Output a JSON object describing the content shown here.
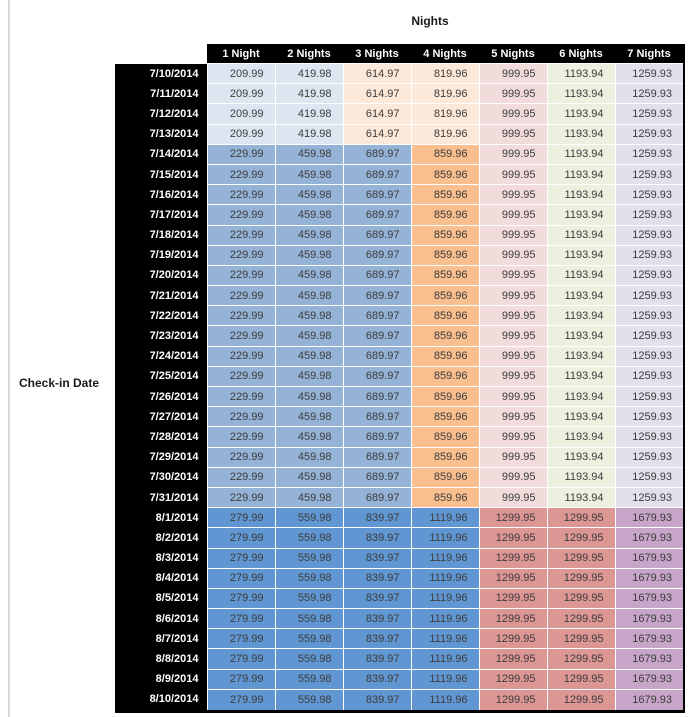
{
  "page": {
    "background_color": "#ffffff",
    "left_edge_line_color": "#d9d9d9",
    "header_bar_color": "#000000",
    "header_text_color": "#ffffff",
    "value_text_color": "#3c3c3c"
  },
  "chart_data": {
    "type": "table",
    "title": "Nights",
    "row_label": "Check-in Date",
    "columns": [
      "1 Night",
      "2 Nights",
      "3 Nights",
      "4 Nights",
      "5 Nights",
      "6 Nights",
      "7 Nights"
    ],
    "palette": {
      "blue_light": "#DCE6F1",
      "blue_mid": "#95B3D7",
      "blue_dark": "#6096D2",
      "orange_light": "#FDE9D9",
      "orange_mid": "#FABF8F",
      "red_light": "#F2DCDB",
      "red_mid": "#DC9694",
      "green_light": "#EBF1DE",
      "purple_light": "#E4DFEC",
      "purple_mid": "#C7A5C8"
    },
    "band_colors": {
      "A": [
        "blue_light",
        "blue_light",
        "orange_light",
        "orange_light",
        "red_light",
        "green_light",
        "purple_light"
      ],
      "B": [
        "blue_mid",
        "blue_mid",
        "blue_mid",
        "orange_mid",
        "red_light",
        "green_light",
        "purple_light"
      ],
      "C": [
        "blue_dark",
        "blue_dark",
        "blue_dark",
        "blue_dark",
        "red_mid",
        "red_mid",
        "purple_mid"
      ]
    },
    "rows": [
      {
        "date": "7/10/2014",
        "band": "A",
        "values": [
          209.99,
          419.98,
          614.97,
          819.96,
          999.95,
          1193.94,
          1259.93
        ]
      },
      {
        "date": "7/11/2014",
        "band": "A",
        "values": [
          209.99,
          419.98,
          614.97,
          819.96,
          999.95,
          1193.94,
          1259.93
        ]
      },
      {
        "date": "7/12/2014",
        "band": "A",
        "values": [
          209.99,
          419.98,
          614.97,
          819.96,
          999.95,
          1193.94,
          1259.93
        ]
      },
      {
        "date": "7/13/2014",
        "band": "A",
        "values": [
          209.99,
          419.98,
          614.97,
          819.96,
          999.95,
          1193.94,
          1259.93
        ]
      },
      {
        "date": "7/14/2014",
        "band": "B",
        "values": [
          229.99,
          459.98,
          689.97,
          859.96,
          999.95,
          1193.94,
          1259.93
        ]
      },
      {
        "date": "7/15/2014",
        "band": "B",
        "values": [
          229.99,
          459.98,
          689.97,
          859.96,
          999.95,
          1193.94,
          1259.93
        ]
      },
      {
        "date": "7/16/2014",
        "band": "B",
        "values": [
          229.99,
          459.98,
          689.97,
          859.96,
          999.95,
          1193.94,
          1259.93
        ]
      },
      {
        "date": "7/17/2014",
        "band": "B",
        "values": [
          229.99,
          459.98,
          689.97,
          859.96,
          999.95,
          1193.94,
          1259.93
        ]
      },
      {
        "date": "7/18/2014",
        "band": "B",
        "values": [
          229.99,
          459.98,
          689.97,
          859.96,
          999.95,
          1193.94,
          1259.93
        ]
      },
      {
        "date": "7/19/2014",
        "band": "B",
        "values": [
          229.99,
          459.98,
          689.97,
          859.96,
          999.95,
          1193.94,
          1259.93
        ]
      },
      {
        "date": "7/20/2014",
        "band": "B",
        "values": [
          229.99,
          459.98,
          689.97,
          859.96,
          999.95,
          1193.94,
          1259.93
        ]
      },
      {
        "date": "7/21/2014",
        "band": "B",
        "values": [
          229.99,
          459.98,
          689.97,
          859.96,
          999.95,
          1193.94,
          1259.93
        ]
      },
      {
        "date": "7/22/2014",
        "band": "B",
        "values": [
          229.99,
          459.98,
          689.97,
          859.96,
          999.95,
          1193.94,
          1259.93
        ]
      },
      {
        "date": "7/23/2014",
        "band": "B",
        "values": [
          229.99,
          459.98,
          689.97,
          859.96,
          999.95,
          1193.94,
          1259.93
        ]
      },
      {
        "date": "7/24/2014",
        "band": "B",
        "values": [
          229.99,
          459.98,
          689.97,
          859.96,
          999.95,
          1193.94,
          1259.93
        ]
      },
      {
        "date": "7/25/2014",
        "band": "B",
        "values": [
          229.99,
          459.98,
          689.97,
          859.96,
          999.95,
          1193.94,
          1259.93
        ]
      },
      {
        "date": "7/26/2014",
        "band": "B",
        "values": [
          229.99,
          459.98,
          689.97,
          859.96,
          999.95,
          1193.94,
          1259.93
        ]
      },
      {
        "date": "7/27/2014",
        "band": "B",
        "values": [
          229.99,
          459.98,
          689.97,
          859.96,
          999.95,
          1193.94,
          1259.93
        ]
      },
      {
        "date": "7/28/2014",
        "band": "B",
        "values": [
          229.99,
          459.98,
          689.97,
          859.96,
          999.95,
          1193.94,
          1259.93
        ]
      },
      {
        "date": "7/29/2014",
        "band": "B",
        "values": [
          229.99,
          459.98,
          689.97,
          859.96,
          999.95,
          1193.94,
          1259.93
        ]
      },
      {
        "date": "7/30/2014",
        "band": "B",
        "values": [
          229.99,
          459.98,
          689.97,
          859.96,
          999.95,
          1193.94,
          1259.93
        ]
      },
      {
        "date": "7/31/2014",
        "band": "B",
        "values": [
          229.99,
          459.98,
          689.97,
          859.96,
          999.95,
          1193.94,
          1259.93
        ]
      },
      {
        "date": "8/1/2014",
        "band": "C",
        "values": [
          279.99,
          559.98,
          839.97,
          1119.96,
          1299.95,
          1299.95,
          1679.93
        ]
      },
      {
        "date": "8/2/2014",
        "band": "C",
        "values": [
          279.99,
          559.98,
          839.97,
          1119.96,
          1299.95,
          1299.95,
          1679.93
        ]
      },
      {
        "date": "8/3/2014",
        "band": "C",
        "values": [
          279.99,
          559.98,
          839.97,
          1119.96,
          1299.95,
          1299.95,
          1679.93
        ]
      },
      {
        "date": "8/4/2014",
        "band": "C",
        "values": [
          279.99,
          559.98,
          839.97,
          1119.96,
          1299.95,
          1299.95,
          1679.93
        ]
      },
      {
        "date": "8/5/2014",
        "band": "C",
        "values": [
          279.99,
          559.98,
          839.97,
          1119.96,
          1299.95,
          1299.95,
          1679.93
        ]
      },
      {
        "date": "8/6/2014",
        "band": "C",
        "values": [
          279.99,
          559.98,
          839.97,
          1119.96,
          1299.95,
          1299.95,
          1679.93
        ]
      },
      {
        "date": "8/7/2014",
        "band": "C",
        "values": [
          279.99,
          559.98,
          839.97,
          1119.96,
          1299.95,
          1299.95,
          1679.93
        ]
      },
      {
        "date": "8/8/2014",
        "band": "C",
        "values": [
          279.99,
          559.98,
          839.97,
          1119.96,
          1299.95,
          1299.95,
          1679.93
        ]
      },
      {
        "date": "8/9/2014",
        "band": "C",
        "values": [
          279.99,
          559.98,
          839.97,
          1119.96,
          1299.95,
          1299.95,
          1679.93
        ]
      },
      {
        "date": "8/10/2014",
        "band": "C",
        "values": [
          279.99,
          559.98,
          839.97,
          1119.96,
          1299.95,
          1299.95,
          1679.93
        ]
      }
    ]
  }
}
